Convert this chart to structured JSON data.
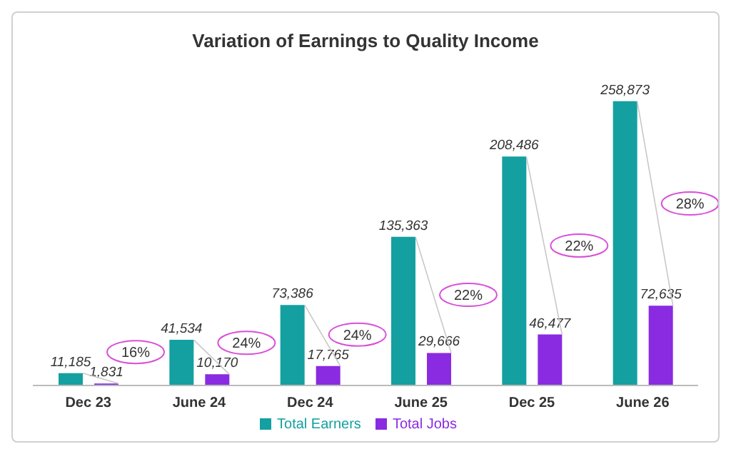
{
  "chart_data": {
    "type": "bar",
    "title": "Variation of Earnings to Quality Income",
    "categories": [
      "Dec 23",
      "June 24",
      "Dec 24",
      "June 25",
      "Dec 25",
      "June 26"
    ],
    "series": [
      {
        "name": "Total Earners",
        "color": "#14a0a0",
        "values": [
          11185,
          41534,
          73386,
          135363,
          208486,
          258873
        ],
        "value_labels": [
          "11,185",
          "41,534",
          "73,386",
          "135,363",
          "208,486",
          "258,873"
        ]
      },
      {
        "name": "Total Jobs",
        "color": "#8a2be2",
        "values": [
          1831,
          10170,
          17765,
          29666,
          46477,
          72635
        ],
        "value_labels": [
          "1,831",
          "10,170",
          "17,765",
          "29,666",
          "46,477",
          "72,635"
        ]
      }
    ],
    "legend": "bottom",
    "annotations": [
      "16%",
      "24%",
      "24%",
      "22%",
      "22%",
      "28%"
    ]
  }
}
